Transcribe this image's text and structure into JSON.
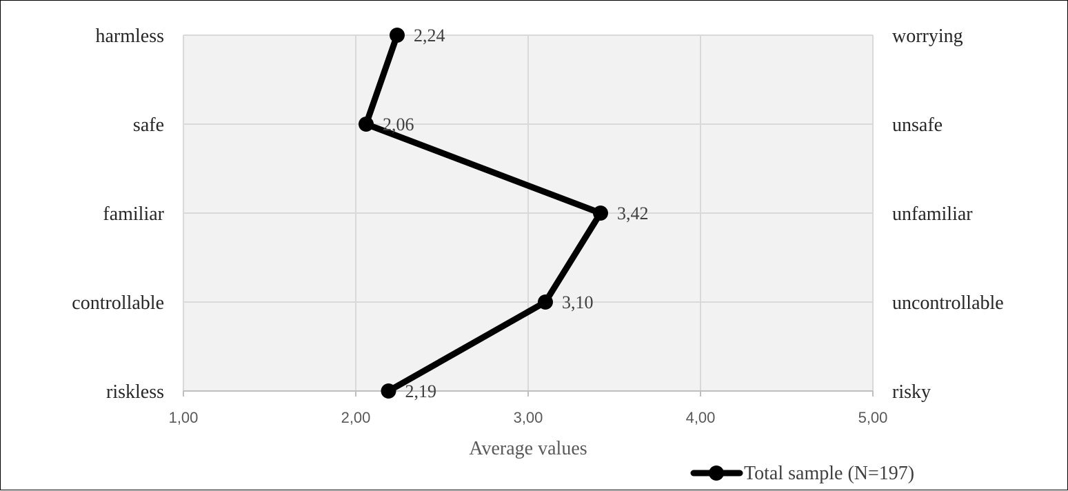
{
  "chart_data": {
    "type": "line",
    "orientation": "horizontal-profile",
    "title": "",
    "xlabel": "Average values",
    "ylabel": "",
    "xlim": [
      1,
      5
    ],
    "x_ticks": [
      1,
      2,
      3,
      4,
      5
    ],
    "x_tick_labels": [
      "1,00",
      "2,00",
      "3,00",
      "4,00",
      "5,00"
    ],
    "grid": true,
    "categories_left": [
      "harmless",
      "safe",
      "familiar",
      "controllable",
      "riskless"
    ],
    "categories_right": [
      "worrying",
      "unsafe",
      "unfamiliar",
      "uncontrollable",
      "risky"
    ],
    "series": [
      {
        "name": "Total sample (N=197)",
        "values": [
          2.24,
          2.06,
          3.42,
          3.1,
          2.19
        ],
        "value_labels": [
          "2,24",
          "2,06",
          "3,42",
          "3,10",
          "2,19"
        ],
        "color": "#000000"
      }
    ],
    "legend_position": "bottom-right",
    "plot_background": "#f2f2f2",
    "grid_color": "#d9d9d9"
  }
}
